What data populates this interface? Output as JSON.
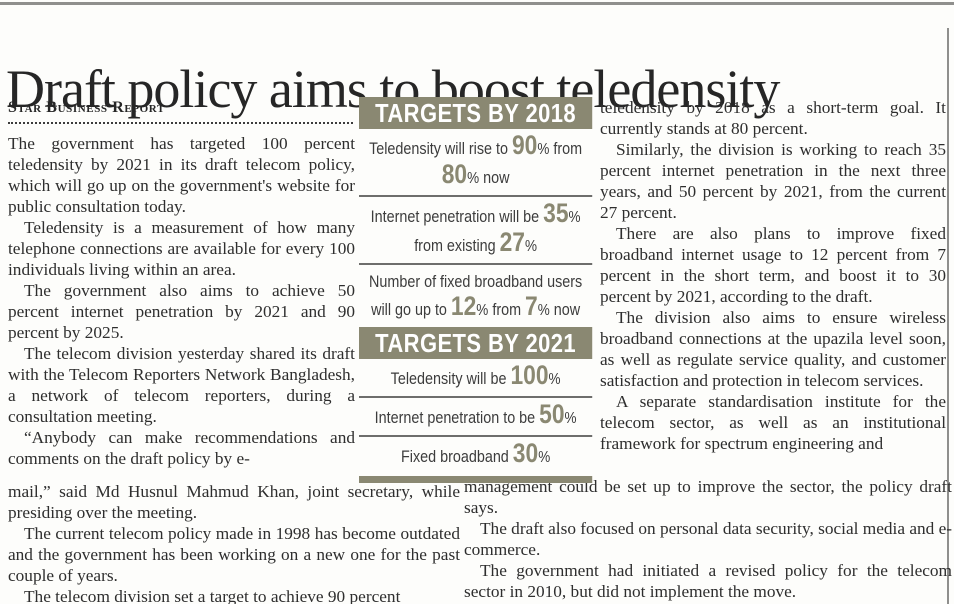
{
  "page": {
    "headline": "Draft policy aims to boost teledensity",
    "byline": "Star Business Report"
  },
  "article": {
    "left_narrow": [
      "The government has targeted 100 percent teledensity by 2021 in its draft telecom policy, which will go up on the government's website for public consultation today.",
      "Teledensity is a measurement of how many telephone connections are available for every 100 individuals living within an area.",
      "The government also aims to achieve 50 percent internet penetration by 2021 and 90 percent by 2025.",
      "The telecom division yesterday shared its draft with the Telecom Reporters Network Bangladesh, a network of telecom reporters, during a consultation meeting.",
      "“Anybody can make recommendations and comments on the draft policy by e-"
    ],
    "left_wide": [
      "mail,” said Md Husnul Mahmud Khan, joint secretary, while presiding over the meeting.",
      "The current telecom policy made in 1998 has become outdated and the government has been working on a new one for the past couple of years.",
      "The telecom division set a target to achieve 90 percent"
    ],
    "right_narrow": [
      "teledensity by 2018 as a short-term goal. It currently stands at 80 percent.",
      "Similarly, the division is working to reach 35 percent internet penetration in the next three years, and 50 percent by 2021, from the current 27 percent.",
      "There are also plans to improve fixed broadband internet usage to 12 percent from 7 percent in the short term, and boost it to 30 percent by 2021, according to the draft.",
      "The division also aims to ensure wireless broadband connections at the upazila level soon, as well as regulate service quality, and customer satisfaction and protection in telecom services.",
      "A separate standardisation institute for the telecom sector, as well as an institutional framework for spectrum engineering and"
    ],
    "right_wide": [
      "management could be set up to improve the sector, the policy draft says.",
      "The draft also focused on personal data security, social media and e-commerce.",
      "The government had initiated a revised policy for the telecom sector in 2010, but did not implement the move."
    ]
  },
  "targets_box": {
    "accent_color": "#8a8872",
    "header_2018": "TARGETS BY 2018",
    "header_2021": "TARGETS BY 2021",
    "rows_2018": [
      {
        "t1": "Teledensity will rise to ",
        "n1": "90",
        "p1": "%",
        "t2": " from ",
        "n2": "80",
        "p2": "%",
        "t3": " now"
      },
      {
        "t1": "Internet penetration will be ",
        "n1": "35",
        "p1": "%",
        "t2": " from existing ",
        "n2": "27",
        "p2": "%"
      },
      {
        "t1": "Number of fixed broadband users will go up to ",
        "n1": "12",
        "p1": "%",
        "t2": " from ",
        "n2": "7",
        "p2": "%",
        "t3": " now"
      }
    ],
    "rows_2021": [
      {
        "t1": "Teledensity will be ",
        "n1": "100",
        "p1": "%"
      },
      {
        "t1": "Internet penetration to be ",
        "n1": "50",
        "p1": "%"
      },
      {
        "t1": "Fixed broadband ",
        "n1": "30",
        "p1": "%"
      }
    ]
  }
}
